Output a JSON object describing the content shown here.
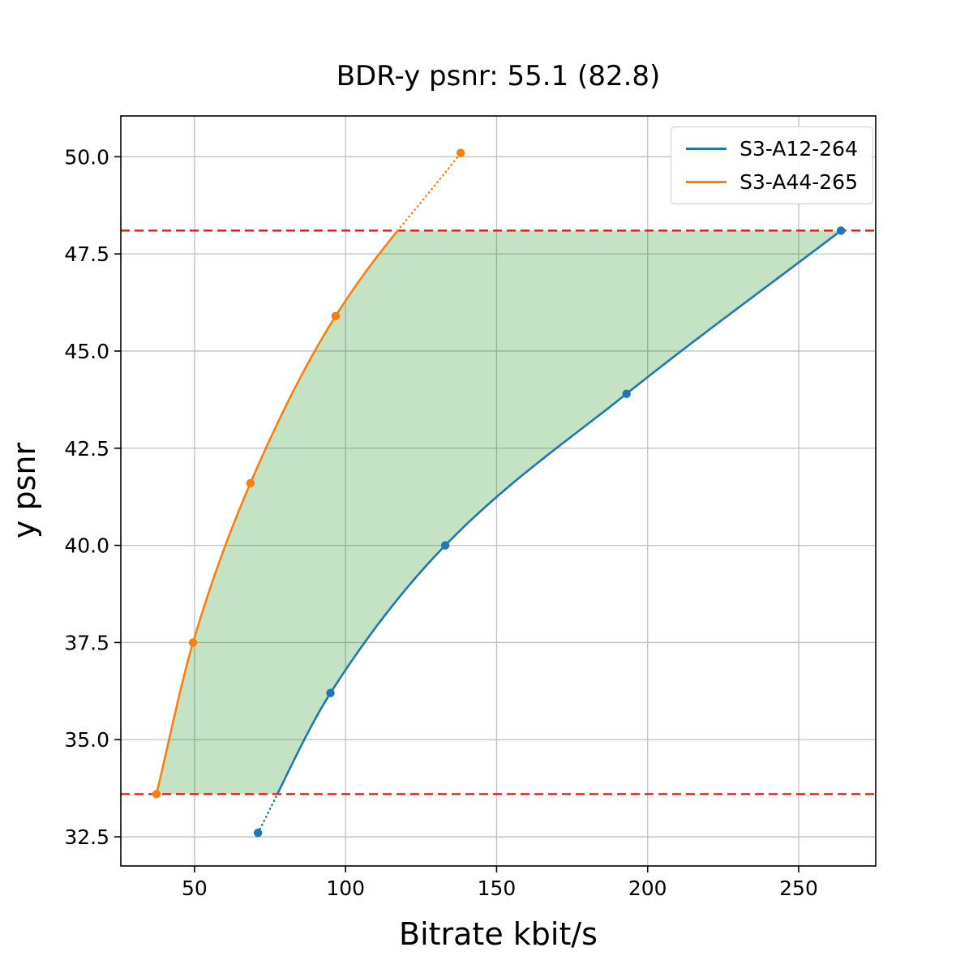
{
  "chart_data": {
    "type": "line",
    "title": "BDR-y psnr: 55.1 (82.8)",
    "xlabel": "Bitrate kbit/s",
    "ylabel": "y psnr",
    "xlim": [
      25.6,
      275.5
    ],
    "ylim": [
      31.75,
      51.05
    ],
    "xticks": {
      "values": [
        50,
        100,
        150,
        200,
        250
      ],
      "labels": [
        "50",
        "100",
        "150",
        "200",
        "250"
      ]
    },
    "yticks": {
      "values": [
        32.5,
        35.0,
        37.5,
        40.0,
        42.5,
        45.0,
        47.5,
        50.0
      ],
      "labels": [
        "32.5",
        "35.0",
        "37.5",
        "40.0",
        "42.5",
        "45.0",
        "47.5",
        "50.0"
      ]
    },
    "grid": true,
    "grid_color": "#c0c0c0",
    "legend": {
      "position": "upper right"
    },
    "series": [
      {
        "name": "S3-A12-264",
        "color": "#1f77b4",
        "x": [
          71,
          95,
          133,
          193,
          264
        ],
        "y": [
          32.6,
          36.2,
          40.0,
          43.9,
          48.1
        ]
      },
      {
        "name": "S3-A44-265",
        "color": "#ff7f0e",
        "x": [
          37.4,
          49.5,
          68.5,
          96.7,
          138.1
        ],
        "y": [
          33.6,
          37.5,
          41.6,
          45.9,
          50.1
        ]
      }
    ],
    "overlap": {
      "lower_y": 33.6,
      "upper_y": 48.1,
      "line_color": "#ff0000",
      "line_style": "dashed"
    },
    "fill_between": {
      "color": "#008000",
      "opacity": 0.23,
      "description": "region between the two rate-distortion curves clipped to the overlap y-range"
    }
  }
}
